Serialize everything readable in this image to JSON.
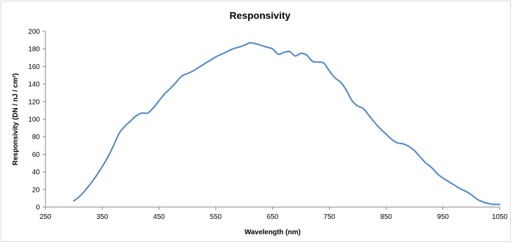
{
  "chart_data": {
    "type": "line",
    "title": "Responsivity",
    "xlabel": "Wavelength (nm)",
    "ylabel": "Responsivity (DN / nJ / cm²)",
    "xlim": [
      250,
      1050
    ],
    "ylim": [
      0,
      200
    ],
    "xticks": [
      250,
      350,
      450,
      550,
      650,
      750,
      850,
      950,
      1050
    ],
    "yticks": [
      0,
      20,
      40,
      60,
      80,
      100,
      120,
      140,
      160,
      180,
      200
    ],
    "grid": false,
    "legend": "none",
    "series": [
      {
        "color": "#5b8cc5",
        "x": [
          300,
          310,
          320,
          330,
          340,
          350,
          360,
          370,
          380,
          390,
          400,
          410,
          420,
          430,
          440,
          450,
          460,
          470,
          480,
          490,
          500,
          510,
          520,
          530,
          540,
          550,
          560,
          570,
          580,
          590,
          600,
          610,
          620,
          630,
          640,
          650,
          660,
          670,
          680,
          690,
          700,
          710,
          720,
          730,
          740,
          750,
          760,
          770,
          780,
          790,
          800,
          810,
          820,
          830,
          840,
          850,
          860,
          870,
          880,
          890,
          900,
          910,
          920,
          930,
          940,
          950,
          960,
          970,
          980,
          990,
          1000,
          1010,
          1020,
          1030,
          1040,
          1050
        ],
        "values": [
          7,
          12,
          19,
          27,
          36,
          46,
          57,
          70,
          84,
          92,
          98,
          104,
          107,
          107,
          113,
          121,
          129,
          135,
          142,
          149,
          152,
          155,
          159,
          163,
          167,
          171,
          174,
          177,
          180,
          182,
          184,
          187,
          186,
          184,
          182,
          180,
          174,
          176,
          177,
          172,
          175,
          173,
          166,
          165,
          164,
          155,
          147,
          142,
          133,
          121,
          115,
          112,
          104,
          96,
          89,
          83,
          77,
          73,
          72,
          69,
          64,
          57,
          50,
          45,
          38,
          33,
          29,
          25,
          21,
          18,
          14,
          9,
          6,
          4,
          3,
          3
        ]
      }
    ]
  }
}
